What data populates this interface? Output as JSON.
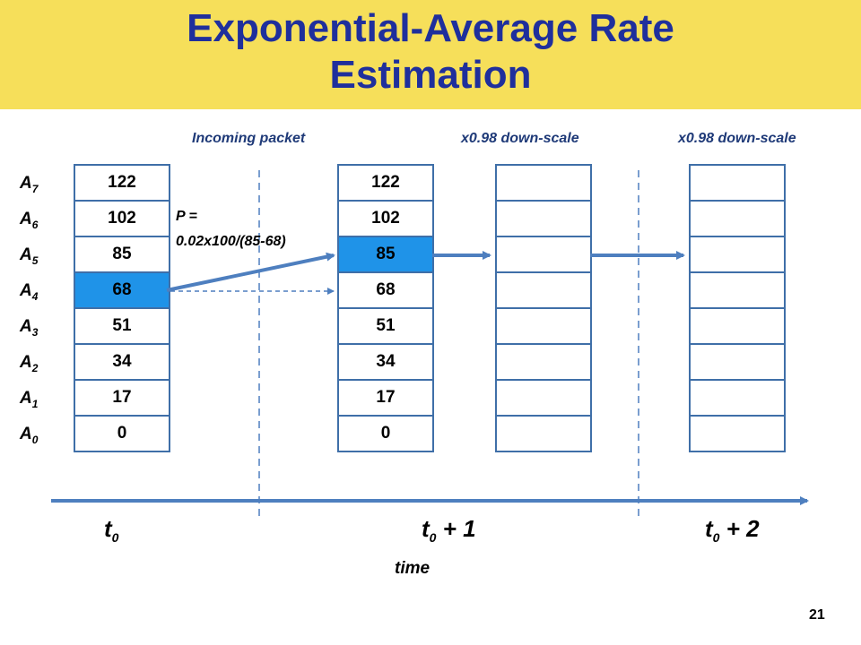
{
  "title": {
    "line1": "Exponential-Average Rate",
    "line2": "Estimation"
  },
  "column_labels": {
    "incoming": "Incoming packet",
    "downscale1": "x0.98 down-scale",
    "downscale2": "x0.98 down-scale"
  },
  "row_labels": [
    {
      "letter": "A",
      "sub": "7"
    },
    {
      "letter": "A",
      "sub": "6"
    },
    {
      "letter": "A",
      "sub": "5"
    },
    {
      "letter": "A",
      "sub": "4"
    },
    {
      "letter": "A",
      "sub": "3"
    },
    {
      "letter": "A",
      "sub": "2"
    },
    {
      "letter": "A",
      "sub": "1"
    },
    {
      "letter": "A",
      "sub": "0"
    }
  ],
  "columns": [
    {
      "cells": [
        "122",
        "102",
        "85",
        "68",
        "51",
        "34",
        "17",
        "0"
      ],
      "highlight_row": 3
    },
    {
      "cells": [
        "122",
        "102",
        "85",
        "68",
        "51",
        "34",
        "17",
        "0"
      ],
      "highlight_row": 2
    },
    {
      "cells": [
        "",
        "",
        "",
        "",
        "",
        "",
        "",
        ""
      ],
      "highlight_row": -1
    },
    {
      "cells": [
        "",
        "",
        "",
        "",
        "",
        "",
        "",
        ""
      ],
      "highlight_row": -1
    }
  ],
  "highlight_color": "#1f93e8",
  "probability": {
    "line1": "P =",
    "line2": "0.02x100/(85-68)"
  },
  "time_ticks": [
    {
      "base": "t",
      "sub": "0",
      "suffix": ""
    },
    {
      "base": "t",
      "sub": "0",
      "suffix": " + 1"
    },
    {
      "base": "t",
      "sub": "0",
      "suffix": " + 2"
    }
  ],
  "axis_label": "time",
  "page_number": "21"
}
